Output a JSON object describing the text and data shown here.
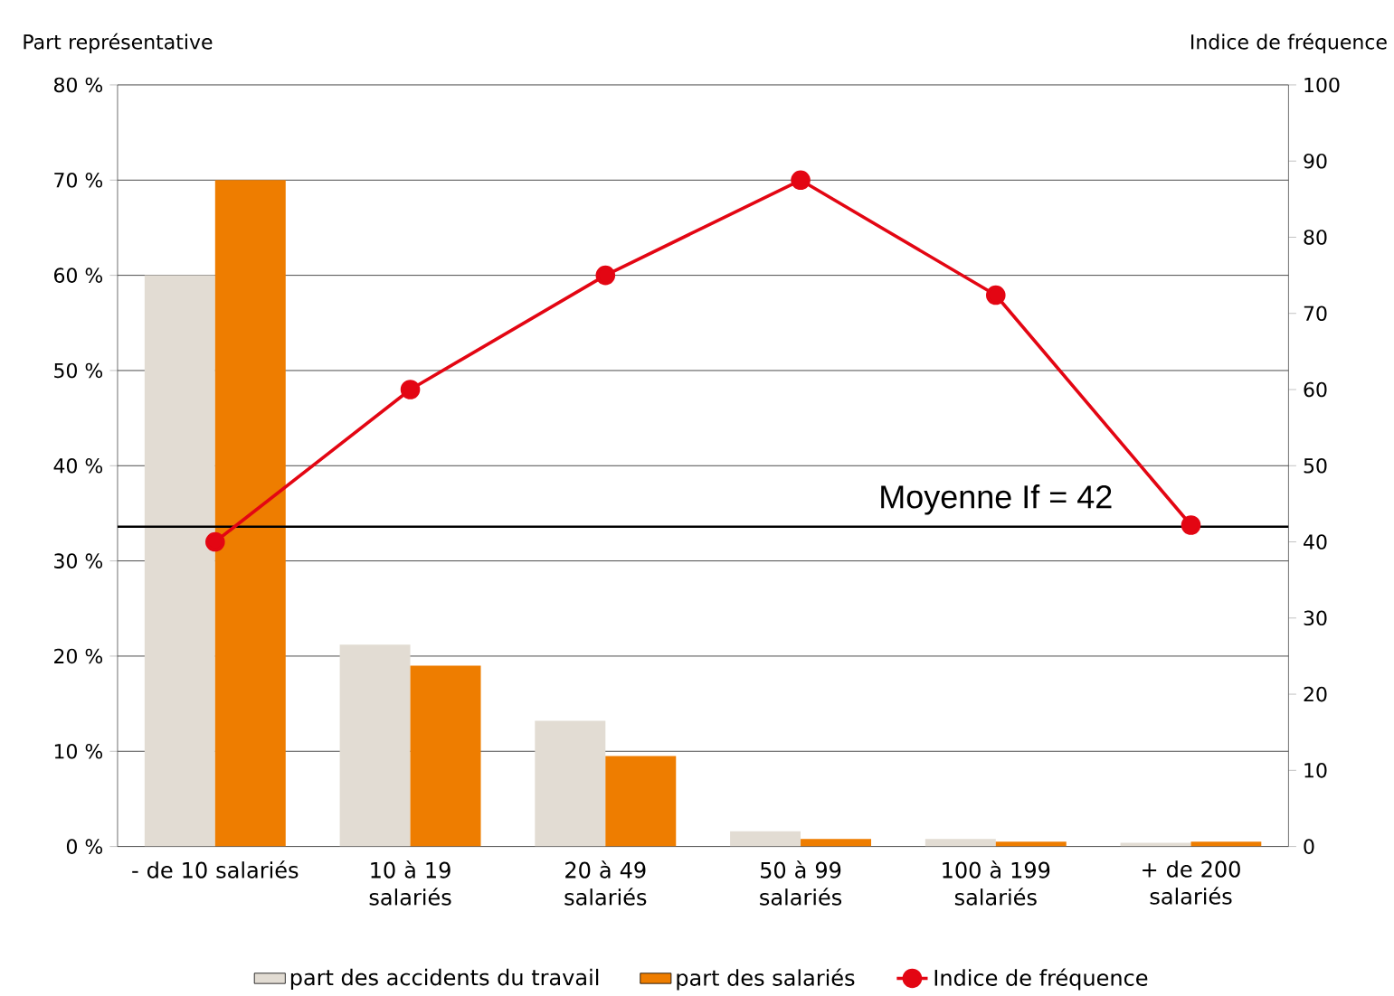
{
  "chart_data": {
    "type": "bar",
    "ylabel": "Part représentative",
    "y2label": "Indice de fréquence",
    "categories": [
      "- de 10 salariés",
      "10 à 19 salariés",
      "20 à 49 salariés",
      "50 à 99 salariés",
      "100 à 199 salariés",
      "+ de 200 salariés"
    ],
    "series": [
      {
        "name": "part des accidents du travail",
        "color": "#e2dcd3",
        "values": [
          60,
          21.2,
          13.2,
          1.6,
          0.8,
          0.4
        ]
      },
      {
        "name": "part des salariés",
        "color": "#ee7d00",
        "values": [
          70,
          19,
          9.5,
          0.8,
          0.5,
          0.5
        ]
      },
      {
        "name": "Indice de fréquence",
        "type": "line",
        "axis": "y2",
        "color": "#e30613",
        "marker": "circle",
        "values": [
          40,
          60,
          75,
          87.5,
          72.4,
          42.2
        ]
      }
    ],
    "ylim": [
      0,
      80
    ],
    "yticks": [
      {
        "value": 0,
        "label": "0 %"
      },
      {
        "value": 10,
        "label": "10 %"
      },
      {
        "value": 20,
        "label": "20 %"
      },
      {
        "value": 30,
        "label": "30 %"
      },
      {
        "value": 40,
        "label": "40 %"
      },
      {
        "value": 50,
        "label": "50 %"
      },
      {
        "value": 60,
        "label": "60 %"
      },
      {
        "value": 70,
        "label": "70 %"
      },
      {
        "value": 80,
        "label": "80 %"
      }
    ],
    "y2lim": [
      0,
      100
    ],
    "y2ticks": [
      0,
      10,
      20,
      30,
      40,
      50,
      60,
      70,
      80,
      90,
      100
    ],
    "ref_lines": [
      {
        "axis": "y2",
        "value": 42,
        "label": "Moyenne If = 42",
        "color": "#000000"
      }
    ],
    "grid": "y",
    "legend": "bottom"
  }
}
